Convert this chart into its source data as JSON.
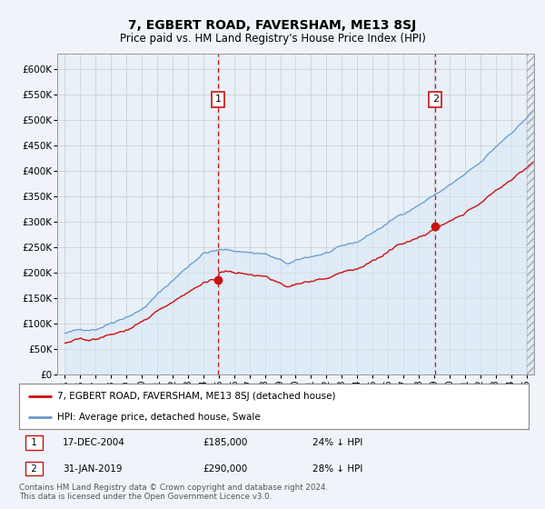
{
  "title": "7, EGBERT ROAD, FAVERSHAM, ME13 8SJ",
  "subtitle": "Price paid vs. HM Land Registry's House Price Index (HPI)",
  "bg_color": "#f0f4fa",
  "plot_bg_color": "#e8f0f8",
  "legend_label_red": "7, EGBERT ROAD, FAVERSHAM, ME13 8SJ (detached house)",
  "legend_label_blue": "HPI: Average price, detached house, Swale",
  "annotation1_date": "17-DEC-2004",
  "annotation1_price": "£185,000",
  "annotation1_hpi": "24% ↓ HPI",
  "annotation1_year": 2004.96,
  "annotation2_date": "31-JAN-2019",
  "annotation2_price": "£290,000",
  "annotation2_hpi": "28% ↓ HPI",
  "annotation2_year": 2019.08,
  "footer": "Contains HM Land Registry data © Crown copyright and database right 2024.\nThis data is licensed under the Open Government Licence v3.0.",
  "ytick_vals": [
    0,
    50000,
    100000,
    150000,
    200000,
    250000,
    300000,
    350000,
    400000,
    450000,
    500000,
    550000,
    600000
  ],
  "ytick_labels": [
    "£0",
    "£50K",
    "£100K",
    "£150K",
    "£200K",
    "£250K",
    "£300K",
    "£350K",
    "£400K",
    "£450K",
    "£500K",
    "£550K",
    "£600K"
  ],
  "ylim": [
    0,
    630000
  ],
  "xlim_start": 1994.5,
  "xlim_end": 2025.5,
  "red_color": "#cc1111",
  "blue_color": "#6699cc"
}
